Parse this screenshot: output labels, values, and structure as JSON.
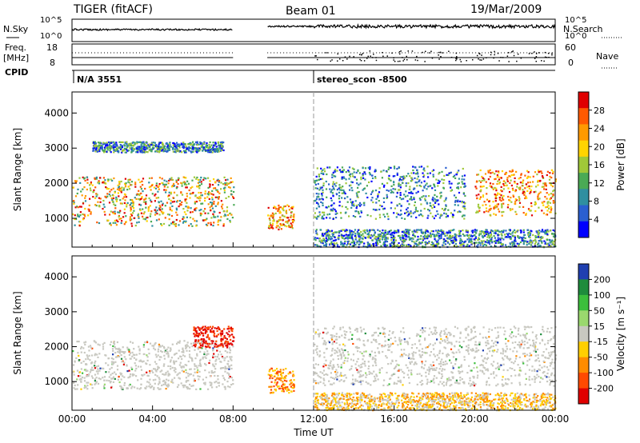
{
  "header": {
    "radar": "TIGER (fitACF)",
    "beam": "Beam 01",
    "date": "19/Mar/2009"
  },
  "strips": {
    "nsky_label": "N.Sky",
    "nsearch_label": "N.Search",
    "freq_label_1": "Freq.",
    "freq_label_2": "[MHz]",
    "nave_label": "Nave",
    "cpid_label": "CPID",
    "noise_ticks": [
      "10^5",
      "10^0"
    ],
    "freq_ticks": [
      "18",
      "8"
    ],
    "nave_ticks": [
      "60",
      "0"
    ],
    "cpid_segments": [
      {
        "start": 0.0,
        "label": "N/A 3551"
      },
      {
        "start": 12.0,
        "label": "stereo_scon -8500"
      }
    ]
  },
  "chart_data": [
    {
      "type": "heatmap",
      "title": "",
      "xlabel": "Time UT",
      "ylabel": "Slant Range [km]",
      "x_range_hours": [
        0,
        24
      ],
      "x_ticks": [
        "00:00",
        "04:00",
        "08:00",
        "12:00",
        "16:00",
        "20:00",
        "00:00"
      ],
      "y_range_km": [
        180,
        4600
      ],
      "y_ticks": [
        1000,
        2000,
        3000,
        4000
      ],
      "colorbar_label": "Power [dB]",
      "colorbar_ticks": [
        "4",
        "8",
        "12",
        "16",
        "20",
        "24",
        "28"
      ],
      "colorbar_colors": [
        "#0000ff",
        "#2a5fd0",
        "#2f8fa0",
        "#4aaa55",
        "#a0c838",
        "#ffd400",
        "#ff9a00",
        "#ff5a00",
        "#e00000"
      ],
      "data_gaps_hours": [
        [
          8.0,
          9.7
        ]
      ],
      "echo_regions": [
        {
          "t": [
            0.0,
            8.0
          ],
          "range_km": [
            800,
            2200
          ],
          "level": "12-28 dB",
          "core": "16-24 dB near 1300-1700 km"
        },
        {
          "t": [
            1.0,
            7.5
          ],
          "range_km": [
            2900,
            3200
          ],
          "level": "4-12 dB"
        },
        {
          "t": [
            9.7,
            11.0
          ],
          "range_km": [
            700,
            1400
          ],
          "level": "20-28 dB"
        },
        {
          "t": [
            12.0,
            19.5
          ],
          "range_km": [
            1000,
            2500
          ],
          "level": "4-16 dB"
        },
        {
          "t": [
            20.0,
            24.0
          ],
          "range_km": [
            1100,
            2400
          ],
          "level": "16-28 dB"
        },
        {
          "t": [
            12.0,
            24.0
          ],
          "range_km": [
            200,
            700
          ],
          "level": "4-16 dB ground scatter"
        }
      ]
    },
    {
      "type": "heatmap",
      "title": "",
      "xlabel": "Time UT",
      "ylabel": "Slant Range [km]",
      "x_range_hours": [
        0,
        24
      ],
      "x_ticks": [
        "00:00",
        "04:00",
        "08:00",
        "12:00",
        "16:00",
        "20:00",
        "00:00"
      ],
      "y_range_km": [
        180,
        4600
      ],
      "y_ticks": [
        1000,
        2000,
        3000,
        4000
      ],
      "colorbar_label": "Velocity [m s⁻¹]",
      "colorbar_ticks": [
        "200",
        "100",
        "50",
        "15",
        "-15",
        "-50",
        "-100",
        "-200"
      ],
      "colorbar_colors": [
        "#1f3fb0",
        "#1e8c3c",
        "#3cbf3c",
        "#9ad86e",
        "#c8c8c0",
        "#ffcf00",
        "#ff8c00",
        "#ff4a00",
        "#e00000"
      ],
      "data_gaps_hours": [
        [
          8.0,
          9.7
        ]
      ],
      "echo_regions": [
        {
          "t": [
            0.0,
            8.0
          ],
          "range_km": [
            800,
            2200
          ],
          "level": "-15 to 15 m/s"
        },
        {
          "t": [
            6.0,
            8.0
          ],
          "range_km": [
            2000,
            2600
          ],
          "level": "-200 to -100 m/s"
        },
        {
          "t": [
            9.7,
            11.0
          ],
          "range_km": [
            700,
            1400
          ],
          "level": "-50 to -100 m/s"
        },
        {
          "t": [
            12.0,
            24.0
          ],
          "range_km": [
            900,
            2600
          ],
          "level": "-15 to 15 m/s"
        },
        {
          "t": [
            12.0,
            24.0
          ],
          "range_km": [
            200,
            700
          ],
          "level": "-15 to -100 m/s ground scatter"
        }
      ]
    }
  ]
}
